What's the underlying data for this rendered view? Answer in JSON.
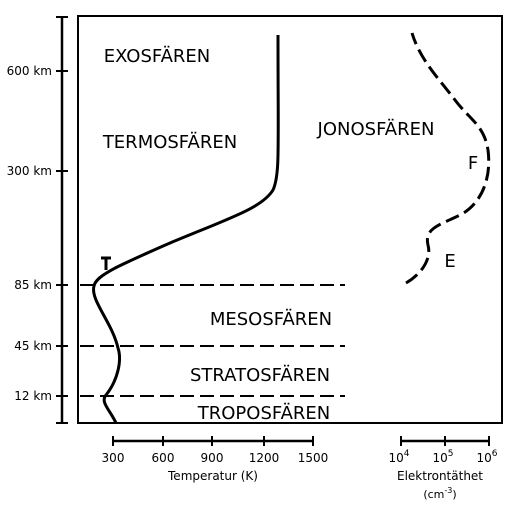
{
  "layers": [
    "EXOSFÄREN",
    "TERMOSFÄREN",
    "JONOSFÄREN",
    "MESOSFÄREN",
    "STRATOSFÄREN",
    "TROPOSFÄREN"
  ],
  "ionosphere_regions": [
    "F",
    "E"
  ],
  "altitude_axis": {
    "ticks": [
      "600 km",
      "300 km",
      "85 km",
      "45 km",
      "12 km"
    ]
  },
  "temperature_axis": {
    "title": "Temperatur (K)",
    "ticks": [
      "300",
      "600",
      "900",
      "1200",
      "1500"
    ]
  },
  "electron_axis": {
    "title": "Elektrontäthet",
    "unit": {
      "open": "(cm",
      "exponent": "-3",
      "close": ")"
    },
    "ticks": [
      {
        "base": "10",
        "exponent": "4"
      },
      {
        "base": "10",
        "exponent": "5"
      },
      {
        "base": "10",
        "exponent": "6"
      }
    ]
  }
}
